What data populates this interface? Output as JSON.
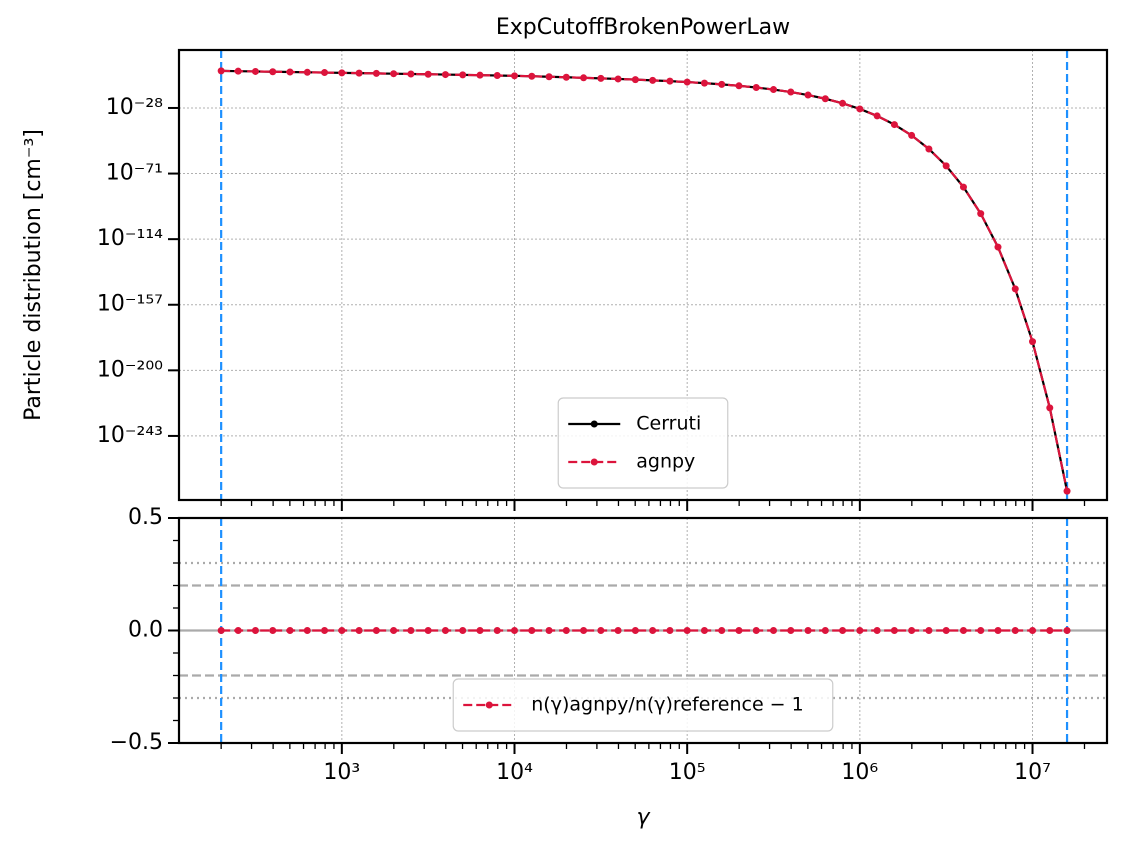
{
  "chart_data": [
    {
      "type": "line",
      "title": "ExpCutoffBrokenPowerLaw",
      "ylabel": "Particle distribution [cm⁻³]",
      "ylog": true,
      "xlog": true,
      "grid": true,
      "legend": "lower center",
      "x": [
        200,
        251,
        316,
        398,
        501,
        631,
        794,
        1000,
        1259,
        1585,
        1995,
        2512,
        3162,
        3981,
        5012,
        6310,
        7943,
        10000,
        12590,
        15850,
        19950,
        25120,
        31620,
        39810,
        50120,
        63100,
        79430,
        100000,
        125900,
        158500,
        199500,
        251200,
        316200,
        398100,
        501200,
        631000,
        794300,
        1000000,
        1259000,
        1585000,
        1995000,
        2512000,
        3162000,
        3981000,
        5012000,
        6310000,
        7943000,
        10000000,
        12590000,
        15850000
      ],
      "series": [
        {
          "name": "Cerruti",
          "color": "#000000",
          "linestyle": "solid",
          "values": [
            0.0002,
            0.000132,
            8.7e-05,
            5.75e-05,
            3.8e-05,
            2.45e-05,
            1.62e-05,
            1.05e-05,
            6.9e-06,
            4.5e-06,
            2.95e-06,
            1.9e-06,
            1.23e-06,
            7.8e-07,
            5e-07,
            3.1e-07,
            1.95e-07,
            1.17e-07,
            5.9e-08,
            2.9e-08,
            1.35e-08,
            6e-09,
            2.6e-09,
            1.05e-09,
            3.8e-10,
            1.29e-10,
            3.8e-11,
            9.3e-12,
            1.9e-12,
            3e-13,
            3.4e-14,
            2.6e-15,
            1.17e-16,
            2.8e-18,
            2.95e-20,
            1.1e-22,
            1.15e-25,
            2.3e-29,
            6e-34,
            1.3e-39,
            9.8e-47,
            1.3e-55,
            1.1e-66,
            1.4e-80,
            5.2e-98,
            6.3e-120,
            2.5e-147,
            6.3e-182,
            2.5e-225,
            6.3e-280
          ]
        },
        {
          "name": "agnpy",
          "color": "#dc143c",
          "linestyle": "dashed",
          "values": [
            0.0002,
            0.000132,
            8.7e-05,
            5.75e-05,
            3.8e-05,
            2.45e-05,
            1.62e-05,
            1.05e-05,
            6.9e-06,
            4.5e-06,
            2.95e-06,
            1.9e-06,
            1.23e-06,
            7.8e-07,
            5e-07,
            3.1e-07,
            1.95e-07,
            1.17e-07,
            5.9e-08,
            2.9e-08,
            1.35e-08,
            6e-09,
            2.6e-09,
            1.05e-09,
            3.8e-10,
            1.29e-10,
            3.8e-11,
            9.3e-12,
            1.9e-12,
            3e-13,
            3.4e-14,
            2.6e-15,
            1.17e-16,
            2.8e-18,
            2.95e-20,
            1.1e-22,
            1.15e-25,
            2.3e-29,
            6e-34,
            1.3e-39,
            9.8e-47,
            1.3e-55,
            1.1e-66,
            1.4e-80,
            5.2e-98,
            6.3e-120,
            2.5e-147,
            6.3e-182,
            2.5e-225,
            6.3e-280
          ]
        }
      ],
      "xlim": [
        114,
        27000000
      ],
      "ylim": [
        1e-285,
        10000000000.0
      ],
      "xticks": [
        1000,
        10000,
        100000,
        1000000,
        10000000
      ],
      "yticks": [
        {
          "value": 1e-28,
          "label": "10⁻²⁸"
        },
        {
          "value": 1e-71,
          "label": "10⁻⁷¹"
        },
        {
          "value": 1e-114,
          "label": "10⁻¹¹⁴"
        },
        {
          "value": 1e-157,
          "label": "10⁻¹⁵⁷"
        },
        {
          "value": 1e-200,
          "label": "10⁻²⁰⁰"
        },
        {
          "value": 1e-243,
          "label": "10⁻²⁴³"
        }
      ],
      "vlines": [
        200,
        15850000
      ],
      "vline_color": "#1e90ff"
    },
    {
      "type": "line",
      "xlabel": "γ",
      "xlog": true,
      "ylog": false,
      "grid": true,
      "legend": "lower center",
      "x": [
        200,
        251,
        316,
        398,
        501,
        631,
        794,
        1000,
        1259,
        1585,
        1995,
        2512,
        3162,
        3981,
        5012,
        6310,
        7943,
        10000,
        12590,
        15850,
        19950,
        25120,
        31620,
        39810,
        50120,
        63100,
        79430,
        100000,
        125900,
        158500,
        199500,
        251200,
        316200,
        398100,
        501200,
        631000,
        794300,
        1000000,
        1259000,
        1585000,
        1995000,
        2512000,
        3162000,
        3981000,
        5012000,
        6310000,
        7943000,
        10000000,
        12590000,
        15850000
      ],
      "series": [
        {
          "name": "n(γ)agnpy/n(γ)reference − 1",
          "color": "#dc143c",
          "linestyle": "dashed",
          "values": [
            0,
            0,
            0,
            0,
            0,
            0,
            0,
            0,
            0,
            0,
            0,
            0,
            0,
            0,
            0,
            0,
            0,
            0,
            0,
            0,
            0,
            0,
            0,
            0,
            0,
            0,
            0,
            0,
            0,
            0,
            0,
            0,
            0,
            0,
            0,
            0,
            0,
            0,
            0,
            0,
            0,
            0,
            0,
            0,
            0,
            0,
            0,
            0,
            0,
            0
          ]
        }
      ],
      "xlim": [
        114,
        27000000
      ],
      "ylim": [
        -0.5,
        0.5
      ],
      "xticks": [
        {
          "value": 1000,
          "label": "10³"
        },
        {
          "value": 10000,
          "label": "10⁴"
        },
        {
          "value": 100000,
          "label": "10⁵"
        },
        {
          "value": 1000000,
          "label": "10⁶"
        },
        {
          "value": 10000000,
          "label": "10⁷"
        }
      ],
      "yticks": [
        {
          "value": -0.5,
          "label": "−0.5"
        },
        {
          "value": 0,
          "label": "0.0"
        },
        {
          "value": 0.5,
          "label": "0.5"
        }
      ],
      "hlines": [
        {
          "value": 0,
          "style": "solid"
        },
        {
          "value": 0.2,
          "style": "dashed"
        },
        {
          "value": -0.2,
          "style": "dashed"
        },
        {
          "value": 0.3,
          "style": "dotted"
        },
        {
          "value": -0.3,
          "style": "dotted"
        }
      ],
      "hline_color": "#aaaaaa",
      "vlines": [
        200,
        15850000
      ],
      "vline_color": "#1e90ff"
    }
  ]
}
